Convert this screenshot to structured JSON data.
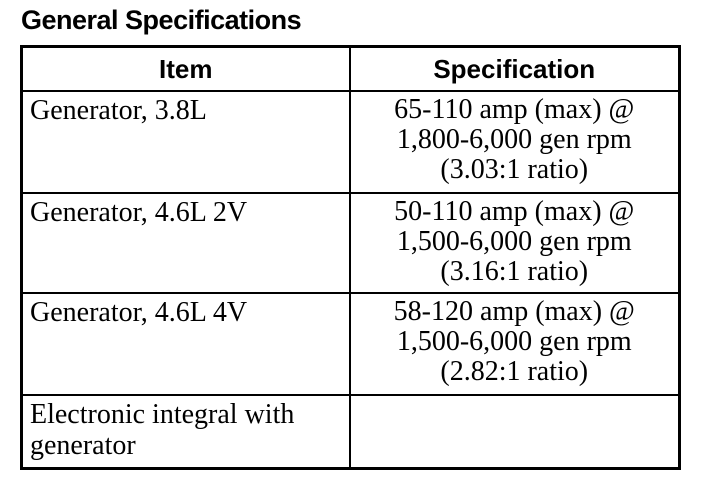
{
  "page": {
    "title": "General Specifications"
  },
  "colors": {
    "text": "#000000",
    "background": "#ffffff",
    "border": "#000000"
  },
  "table": {
    "headers": [
      "Item",
      "Specification"
    ],
    "rows": [
      {
        "item": "Generator, 3.8L",
        "spec_lines": [
          "65-110 amp (max) @",
          "1,800-6,000 gen rpm",
          "(3.03:1 ratio)"
        ]
      },
      {
        "item": "Generator, 4.6L 2V",
        "spec_lines": [
          "50-110 amp (max) @",
          "1,500-6,000 gen rpm",
          "(3.16:1 ratio)"
        ]
      },
      {
        "item": "Generator, 4.6L 4V",
        "spec_lines": [
          "58-120 amp (max) @",
          "1,500-6,000 gen rpm",
          "(2.82:1 ratio)"
        ]
      },
      {
        "item": "Electronic integral with generator",
        "spec_lines": []
      }
    ]
  }
}
